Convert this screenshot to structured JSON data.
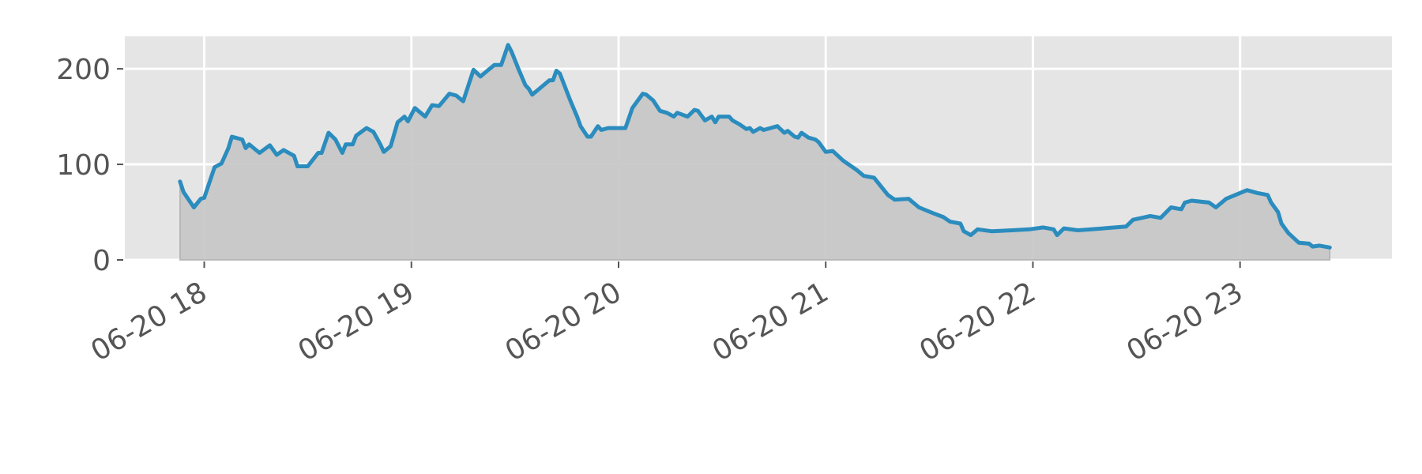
{
  "chart_data": {
    "type": "area",
    "title": "",
    "xlabel": "",
    "ylabel": "",
    "date": "06-20",
    "xlim": [
      "17:37",
      "23:44"
    ],
    "ylim": [
      0,
      234
    ],
    "grid": true,
    "x_tick_labels": [
      "06-20 18",
      "06-20 19",
      "06-20 20",
      "06-20 21",
      "06-20 22",
      "06-20 23"
    ],
    "x_tick_times": [
      "18:00",
      "19:00",
      "20:00",
      "21:00",
      "22:00",
      "23:00"
    ],
    "y_ticks": [
      0,
      100,
      200
    ],
    "y_tick_labels": [
      "0",
      "100",
      "200"
    ],
    "colors": {
      "line": "#2b8cbe",
      "fill": "#c5c5c5",
      "background": "#e5e5e5",
      "grid": "#ffffff",
      "text": "#555555"
    },
    "series": [
      {
        "points": [
          [
            "17:53",
            82
          ],
          [
            "17:54",
            71
          ],
          [
            "17:57",
            55
          ],
          [
            "17:59",
            64
          ],
          [
            "18:00",
            65
          ],
          [
            "18:03",
            97
          ],
          [
            "18:05",
            101
          ],
          [
            "18:07",
            117
          ],
          [
            "18:08",
            129
          ],
          [
            "18:11",
            126
          ],
          [
            "18:12",
            117
          ],
          [
            "18:13",
            121
          ],
          [
            "18:16",
            112
          ],
          [
            "18:19",
            120
          ],
          [
            "18:21",
            110
          ],
          [
            "18:23",
            115
          ],
          [
            "18:26",
            109
          ],
          [
            "18:27",
            98
          ],
          [
            "18:30",
            98
          ],
          [
            "18:33",
            112
          ],
          [
            "18:34",
            112
          ],
          [
            "18:36",
            133
          ],
          [
            "18:38",
            126
          ],
          [
            "18:40",
            112
          ],
          [
            "18:41",
            121
          ],
          [
            "18:43",
            121
          ],
          [
            "18:44",
            130
          ],
          [
            "18:47",
            138
          ],
          [
            "18:49",
            134
          ],
          [
            "18:51",
            121
          ],
          [
            "18:52",
            113
          ],
          [
            "18:54",
            119
          ],
          [
            "18:56",
            144
          ],
          [
            "18:58",
            150
          ],
          [
            "18:59",
            145
          ],
          [
            "19:01",
            159
          ],
          [
            "19:04",
            150
          ],
          [
            "19:06",
            162
          ],
          [
            "19:08",
            161
          ],
          [
            "19:11",
            174
          ],
          [
            "19:13",
            172
          ],
          [
            "19:15",
            166
          ],
          [
            "19:18",
            199
          ],
          [
            "19:20",
            192
          ],
          [
            "19:22",
            198
          ],
          [
            "19:24",
            204
          ],
          [
            "19:26",
            204
          ],
          [
            "19:28",
            225
          ],
          [
            "19:29",
            218
          ],
          [
            "19:31",
            200
          ],
          [
            "19:33",
            183
          ],
          [
            "19:34",
            179
          ],
          [
            "19:35",
            173
          ],
          [
            "19:37",
            179
          ],
          [
            "19:40",
            188
          ],
          [
            "19:41",
            188
          ],
          [
            "19:42",
            198
          ],
          [
            "19:43",
            195
          ],
          [
            "19:46",
            167
          ],
          [
            "19:48",
            150
          ],
          [
            "19:49",
            140
          ],
          [
            "19:51",
            129
          ],
          [
            "19:52",
            129
          ],
          [
            "19:54",
            140
          ],
          [
            "19:55",
            136
          ],
          [
            "19:57",
            138
          ],
          [
            "20:02",
            138
          ],
          [
            "20:04",
            159
          ],
          [
            "20:07",
            174
          ],
          [
            "20:08",
            173
          ],
          [
            "20:10",
            167
          ],
          [
            "20:12",
            156
          ],
          [
            "20:14",
            154
          ],
          [
            "20:16",
            150
          ],
          [
            "20:17",
            154
          ],
          [
            "20:20",
            150
          ],
          [
            "20:22",
            157
          ],
          [
            "20:23",
            156
          ],
          [
            "20:25",
            146
          ],
          [
            "20:27",
            150
          ],
          [
            "20:28",
            144
          ],
          [
            "20:29",
            150
          ],
          [
            "20:32",
            150
          ],
          [
            "20:33",
            146
          ],
          [
            "20:35",
            142
          ],
          [
            "20:37",
            137
          ],
          [
            "20:38",
            138
          ],
          [
            "20:39",
            134
          ],
          [
            "20:41",
            138
          ],
          [
            "20:42",
            136
          ],
          [
            "20:44",
            138
          ],
          [
            "20:46",
            140
          ],
          [
            "20:48",
            133
          ],
          [
            "20:49",
            135
          ],
          [
            "20:51",
            129
          ],
          [
            "20:52",
            128
          ],
          [
            "20:53",
            133
          ],
          [
            "20:55",
            128
          ],
          [
            "20:57",
            126
          ],
          [
            "20:58",
            123
          ],
          [
            "21:00",
            113
          ],
          [
            "21:02",
            114
          ],
          [
            "21:05",
            104
          ],
          [
            "21:09",
            94
          ],
          [
            "21:11",
            88
          ],
          [
            "21:14",
            86
          ],
          [
            "21:18",
            68
          ],
          [
            "21:20",
            63
          ],
          [
            "21:24",
            64
          ],
          [
            "21:27",
            55
          ],
          [
            "21:31",
            49
          ],
          [
            "21:34",
            45
          ],
          [
            "21:36",
            40
          ],
          [
            "21:39",
            38
          ],
          [
            "21:40",
            30
          ],
          [
            "21:42",
            26
          ],
          [
            "21:44",
            32
          ],
          [
            "21:48",
            30
          ],
          [
            "21:54",
            31
          ],
          [
            "21:59",
            32
          ],
          [
            "22:03",
            34
          ],
          [
            "22:06",
            32
          ],
          [
            "22:07",
            26
          ],
          [
            "22:09",
            33
          ],
          [
            "22:13",
            31
          ],
          [
            "22:17",
            32
          ],
          [
            "22:27",
            35
          ],
          [
            "22:29",
            42
          ],
          [
            "22:34",
            46
          ],
          [
            "22:37",
            44
          ],
          [
            "22:40",
            55
          ],
          [
            "22:43",
            53
          ],
          [
            "22:44",
            60
          ],
          [
            "22:46",
            62
          ],
          [
            "22:51",
            60
          ],
          [
            "22:53",
            55
          ],
          [
            "22:56",
            64
          ],
          [
            "23:00",
            70
          ],
          [
            "23:02",
            73
          ],
          [
            "23:05",
            70
          ],
          [
            "23:08",
            68
          ],
          [
            "23:09",
            60
          ],
          [
            "23:11",
            50
          ],
          [
            "23:12",
            38
          ],
          [
            "23:14",
            28
          ],
          [
            "23:17",
            18
          ],
          [
            "23:20",
            17
          ],
          [
            "23:21",
            14
          ],
          [
            "23:23",
            15
          ],
          [
            "23:26",
            13
          ]
        ]
      }
    ]
  }
}
